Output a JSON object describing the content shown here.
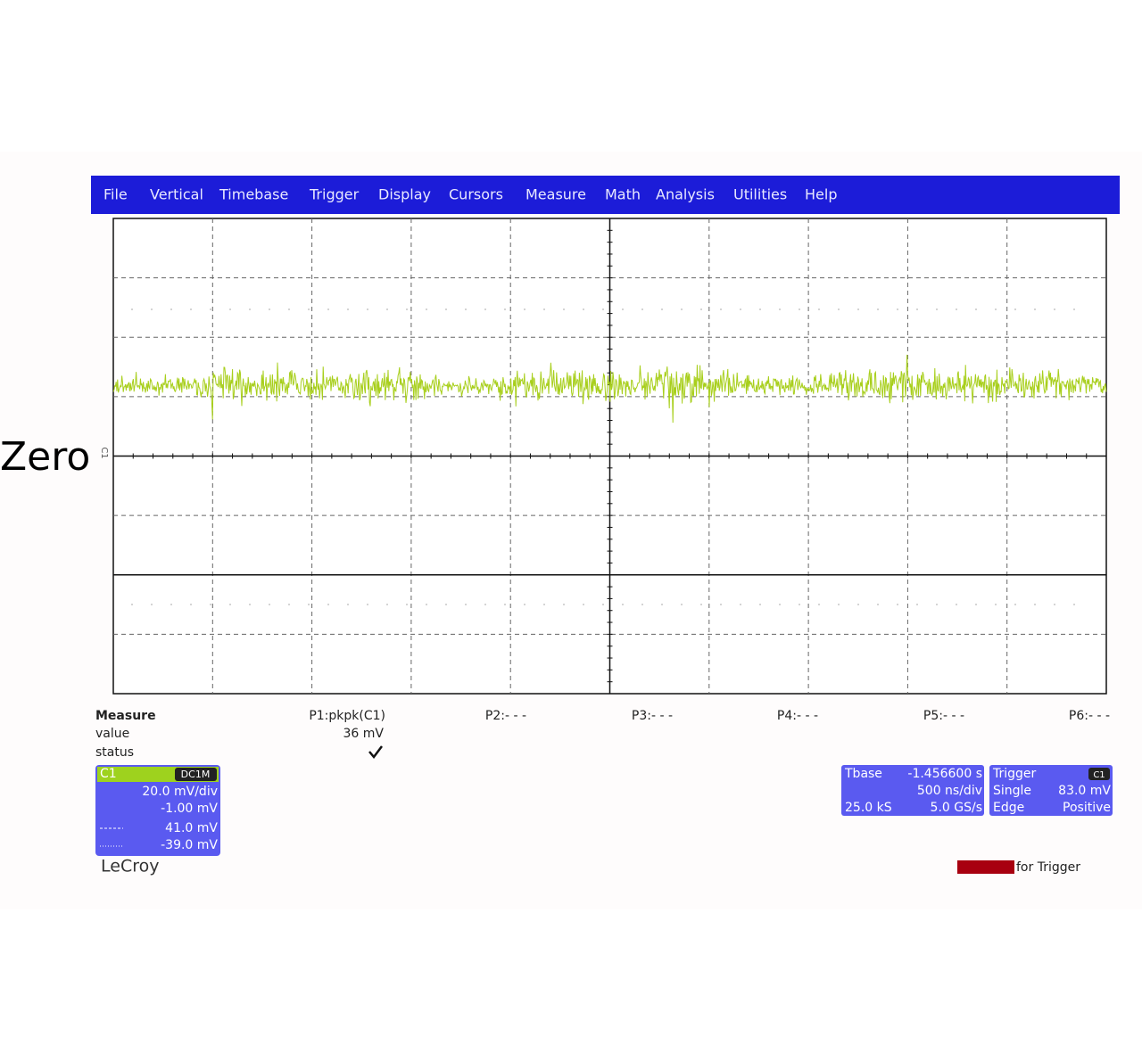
{
  "menu": [
    "File",
    "Vertical",
    "Timebase",
    "Trigger",
    "Display",
    "Cursors",
    "Measure",
    "Math",
    "Analysis",
    "Utilities",
    "Help"
  ],
  "zero_label": "Zero",
  "channel_marker": "C1",
  "measure": {
    "row_labels": [
      "Measure",
      "value",
      "status"
    ],
    "params": [
      {
        "name": "P1:pkpk(C1)",
        "value": "36 mV"
      },
      {
        "name": "P2:- - -"
      },
      {
        "name": "P3:- - -"
      },
      {
        "name": "P4:- - -"
      },
      {
        "name": "P5:- - -"
      },
      {
        "name": "P6:- - -"
      }
    ]
  },
  "channel_box": {
    "name": "C1",
    "coupling": "DC1M",
    "lines": [
      "20.0 mV/div",
      "-1.00 mV",
      "41.0 mV",
      "-39.0 mV"
    ]
  },
  "timebase_box": {
    "title": "Tbase",
    "delay": "-1.456600 s",
    "scale": "500 ns/div",
    "samples": "25.0 kS",
    "rate": "5.0 GS/s"
  },
  "trigger_box": {
    "title": "Trigger",
    "source": "C1",
    "mode": "Single",
    "level": "83.0 mV",
    "type": "Edge",
    "slope": "Positive"
  },
  "brand": "LeCroy",
  "status_text": "for Trigger"
}
